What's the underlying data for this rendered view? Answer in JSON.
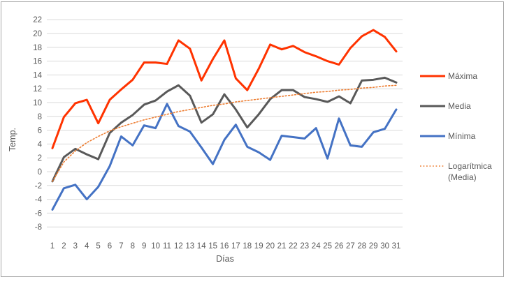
{
  "window": {
    "background_color": "#ffffff",
    "frame_border_color": "#a6a6a6"
  },
  "chart": {
    "gridline_color": "#d9d9d9",
    "tick_text_color": "#595959",
    "legend_items": [
      {
        "key": "maxima",
        "label": "Máxima",
        "lines": [
          "Máxima"
        ],
        "color": "#ff3300",
        "style": "solid"
      },
      {
        "key": "media",
        "label": "Media",
        "lines": [
          "Media"
        ],
        "color": "#595959",
        "style": "solid"
      },
      {
        "key": "minima",
        "label": "Mínima",
        "lines": [
          "Mínima"
        ],
        "color": "#4472c4",
        "style": "solid"
      },
      {
        "key": "trend",
        "label": "Logarítmica (Media)",
        "lines": [
          "Logarítmica",
          "(Media)"
        ],
        "color": "#ed7d31",
        "style": "dotted"
      }
    ]
  },
  "chart_data": {
    "type": "line",
    "title": "",
    "xlabel": "Días",
    "ylabel": "Temp.",
    "ylim": [
      -8,
      22
    ],
    "ytick_step": 2,
    "grid": true,
    "legend_position": "right",
    "yticks": [
      22,
      20,
      18,
      16,
      14,
      12,
      10,
      8,
      6,
      4,
      2,
      0,
      -2,
      -4,
      -6,
      -8
    ],
    "x": [
      1,
      2,
      3,
      4,
      5,
      6,
      7,
      8,
      9,
      10,
      11,
      12,
      13,
      14,
      15,
      16,
      17,
      18,
      19,
      20,
      21,
      22,
      23,
      24,
      25,
      26,
      27,
      28,
      29,
      30,
      31
    ],
    "series": [
      {
        "key": "maxima",
        "name": "Máxima",
        "color": "#ff3300",
        "style": "solid",
        "values": [
          3.4,
          7.9,
          9.9,
          10.4,
          7.0,
          10.4,
          11.9,
          13.3,
          15.8,
          15.8,
          15.6,
          19.0,
          17.8,
          13.2,
          16.3,
          19.0,
          13.5,
          11.8,
          14.9,
          18.4,
          17.7,
          18.2,
          17.3,
          16.7,
          16.0,
          15.5,
          17.9,
          19.6,
          20.5,
          19.5,
          17.4
        ]
      },
      {
        "key": "media",
        "name": "Media",
        "color": "#595959",
        "style": "solid",
        "values": [
          -1.4,
          2.1,
          3.3,
          2.5,
          1.8,
          5.6,
          7.1,
          8.2,
          9.7,
          10.3,
          11.6,
          12.5,
          11.0,
          7.1,
          8.3,
          11.2,
          9.0,
          6.4,
          8.3,
          10.5,
          11.8,
          11.8,
          10.8,
          10.5,
          10.1,
          10.9,
          9.9,
          13.2,
          13.3,
          13.6,
          12.9
        ]
      },
      {
        "key": "minima",
        "name": "Mínima",
        "color": "#4472c4",
        "style": "solid",
        "values": [
          -5.5,
          -2.4,
          -1.9,
          -4.0,
          -2.2,
          0.8,
          5.1,
          3.8,
          6.7,
          6.3,
          9.8,
          6.6,
          5.8,
          3.5,
          1.1,
          4.6,
          6.8,
          3.6,
          2.8,
          1.7,
          5.2,
          5.0,
          4.8,
          6.3,
          1.9,
          7.7,
          3.8,
          3.6,
          5.7,
          6.2,
          9.0
        ]
      },
      {
        "key": "trend",
        "name": "Logarítmica (Media)",
        "color": "#ed7d31",
        "style": "dotted",
        "trend_fit": {
          "form": "a*ln(x)+b",
          "a": 4.05,
          "b": -1.4
        },
        "values": [
          -1.4,
          1.4,
          3.0,
          4.2,
          5.1,
          5.9,
          6.5,
          7.0,
          7.5,
          7.9,
          8.3,
          8.7,
          9.0,
          9.3,
          9.6,
          9.8,
          10.1,
          10.3,
          10.5,
          10.7,
          10.9,
          11.1,
          11.3,
          11.5,
          11.6,
          11.8,
          11.9,
          12.1,
          12.2,
          12.4,
          12.5
        ]
      }
    ]
  }
}
